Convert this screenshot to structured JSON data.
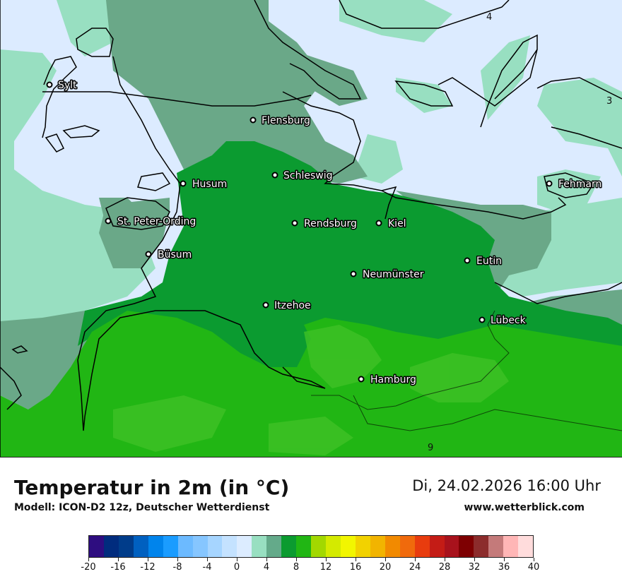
{
  "map": {
    "cities": [
      {
        "name": "Sylt"
      },
      {
        "name": "Flensburg"
      },
      {
        "name": "Schleswig"
      },
      {
        "name": "Husum"
      },
      {
        "name": "St. Peter-Ording"
      },
      {
        "name": "Rendsburg"
      },
      {
        "name": "Kiel"
      },
      {
        "name": "Fehmarn"
      },
      {
        "name": "Büsum"
      },
      {
        "name": "Eutin"
      },
      {
        "name": "Neumünster"
      },
      {
        "name": "Itzehoe"
      },
      {
        "name": "Lübeck"
      },
      {
        "name": "Hamburg"
      }
    ],
    "value_labels": [
      "4",
      "3",
      "9"
    ],
    "colors": {
      "water": "#dcebff",
      "band_0_2": "#98dfc1",
      "band_2_4": "#6aa888",
      "band_4_6": "#5fa98a",
      "band_6_8": "#0b9b30",
      "band_8_10": "#21b614",
      "band_10_12": "#46c225",
      "coast": "#000000"
    }
  },
  "footer": {
    "title": "Temperatur in 2m (in °C)",
    "subtitle": "Modell: ICON-D2 12z, Deutscher Wetterdienst",
    "datetime": "Di, 24.02.2026 16:00 Uhr",
    "website": "www.wetterblick.com"
  },
  "legend": {
    "tick_labels": [
      "-20",
      "-16",
      "-12",
      "-8",
      "-4",
      "0",
      "4",
      "8",
      "12",
      "16",
      "20",
      "24",
      "28",
      "32",
      "36",
      "40"
    ],
    "colors": [
      "#2e0d80",
      "#012c7e",
      "#003c8a",
      "#0060c0",
      "#0084ec",
      "#1a9cff",
      "#6cbaff",
      "#86c6ff",
      "#a6d5ff",
      "#c4e2ff",
      "#dcecff",
      "#98dfc1",
      "#64aa8a",
      "#0b9b30",
      "#21b614",
      "#a2d800",
      "#d4ea00",
      "#f2f600",
      "#f2d200",
      "#f2b400",
      "#f28a00",
      "#f06a0c",
      "#e83c0e",
      "#c41c16",
      "#a8121c",
      "#7e0002",
      "#8c2c2c",
      "#c47a7a",
      "#ffb6b6",
      "#ffdcdc"
    ]
  }
}
